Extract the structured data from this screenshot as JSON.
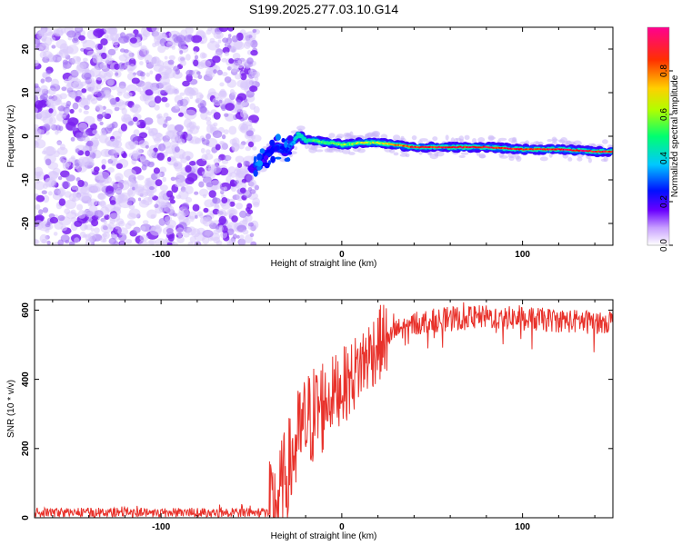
{
  "title": "S199.2025.277.03.10.G14",
  "chart_data": [
    {
      "type": "heatmap",
      "name": "spectrogram",
      "xlabel": "Height of straight line (km)",
      "ylabel": "Frequency (Hz)",
      "xlim": [
        -170,
        150
      ],
      "ylim": [
        -25,
        25
      ],
      "xticks": [
        -100,
        0,
        100
      ],
      "yticks": [
        -20,
        -10,
        0,
        10,
        20
      ],
      "colorbar": {
        "label": "Normalized spectral amplitude",
        "range": [
          0,
          1
        ],
        "ticks": [
          "0.0",
          "0.2",
          "0.4",
          "0.6",
          "0.8"
        ],
        "tick_values": [
          0,
          0.2,
          0.4,
          0.6,
          0.8
        ],
        "colormap": [
          "#ffffff",
          "#6a00ff",
          "#0000ff",
          "#00c0ff",
          "#00ff80",
          "#ffff00",
          "#ff8000",
          "#ff0000",
          "#ff0080"
        ]
      },
      "noise_region_x": [
        -170,
        -47
      ],
      "signal_track": {
        "x": [
          -50,
          -46,
          -42,
          -38,
          -35,
          -31,
          -27,
          -24,
          -20,
          -15,
          -10,
          -5,
          0,
          10,
          20,
          40,
          60,
          80,
          100,
          120,
          140,
          150
        ],
        "freq": [
          -7.5,
          -6.5,
          -4.5,
          -3.0,
          -2.5,
          -3.5,
          -1.5,
          0.5,
          -1.0,
          -1.0,
          -1.5,
          -1.5,
          -2.0,
          -1.5,
          -1.5,
          -2.5,
          -2.5,
          -2.5,
          -3.0,
          -3.0,
          -3.5,
          -3.5
        ],
        "amplitude": [
          0.15,
          0.2,
          0.25,
          0.25,
          0.3,
          0.25,
          0.35,
          0.45,
          0.45,
          0.5,
          0.5,
          0.5,
          0.55,
          0.6,
          0.6,
          0.85,
          0.9,
          0.9,
          0.9,
          0.92,
          0.92,
          0.9
        ]
      }
    },
    {
      "type": "line",
      "name": "snr",
      "xlabel": "Height of straight line (km)",
      "ylabel": "SNR (10 * v/v)",
      "xlim": [
        -170,
        150
      ],
      "ylim": [
        0,
        630
      ],
      "xticks": [
        -100,
        0,
        100
      ],
      "yticks": [
        0,
        200,
        400,
        600
      ],
      "color": "#e8322b",
      "trend": {
        "x": [
          -170,
          -40,
          -37,
          -32,
          -28,
          -24,
          -20,
          -15,
          -10,
          -5,
          0,
          5,
          10,
          15,
          20,
          25,
          30,
          40,
          50,
          60,
          80,
          100,
          120,
          140,
          150
        ],
        "y": [
          15,
          15,
          25,
          100,
          160,
          230,
          270,
          300,
          330,
          360,
          380,
          400,
          440,
          470,
          500,
          520,
          540,
          560,
          570,
          575,
          580,
          575,
          570,
          565,
          570
        ]
      },
      "noise_amplitude": [
        {
          "x_from": -170,
          "x_to": -40,
          "amp": 14
        },
        {
          "x_from": -40,
          "x_to": -10,
          "amp": 150
        },
        {
          "x_from": -10,
          "x_to": 25,
          "amp": 110
        },
        {
          "x_from": 25,
          "x_to": 150,
          "amp": 35
        }
      ]
    }
  ]
}
